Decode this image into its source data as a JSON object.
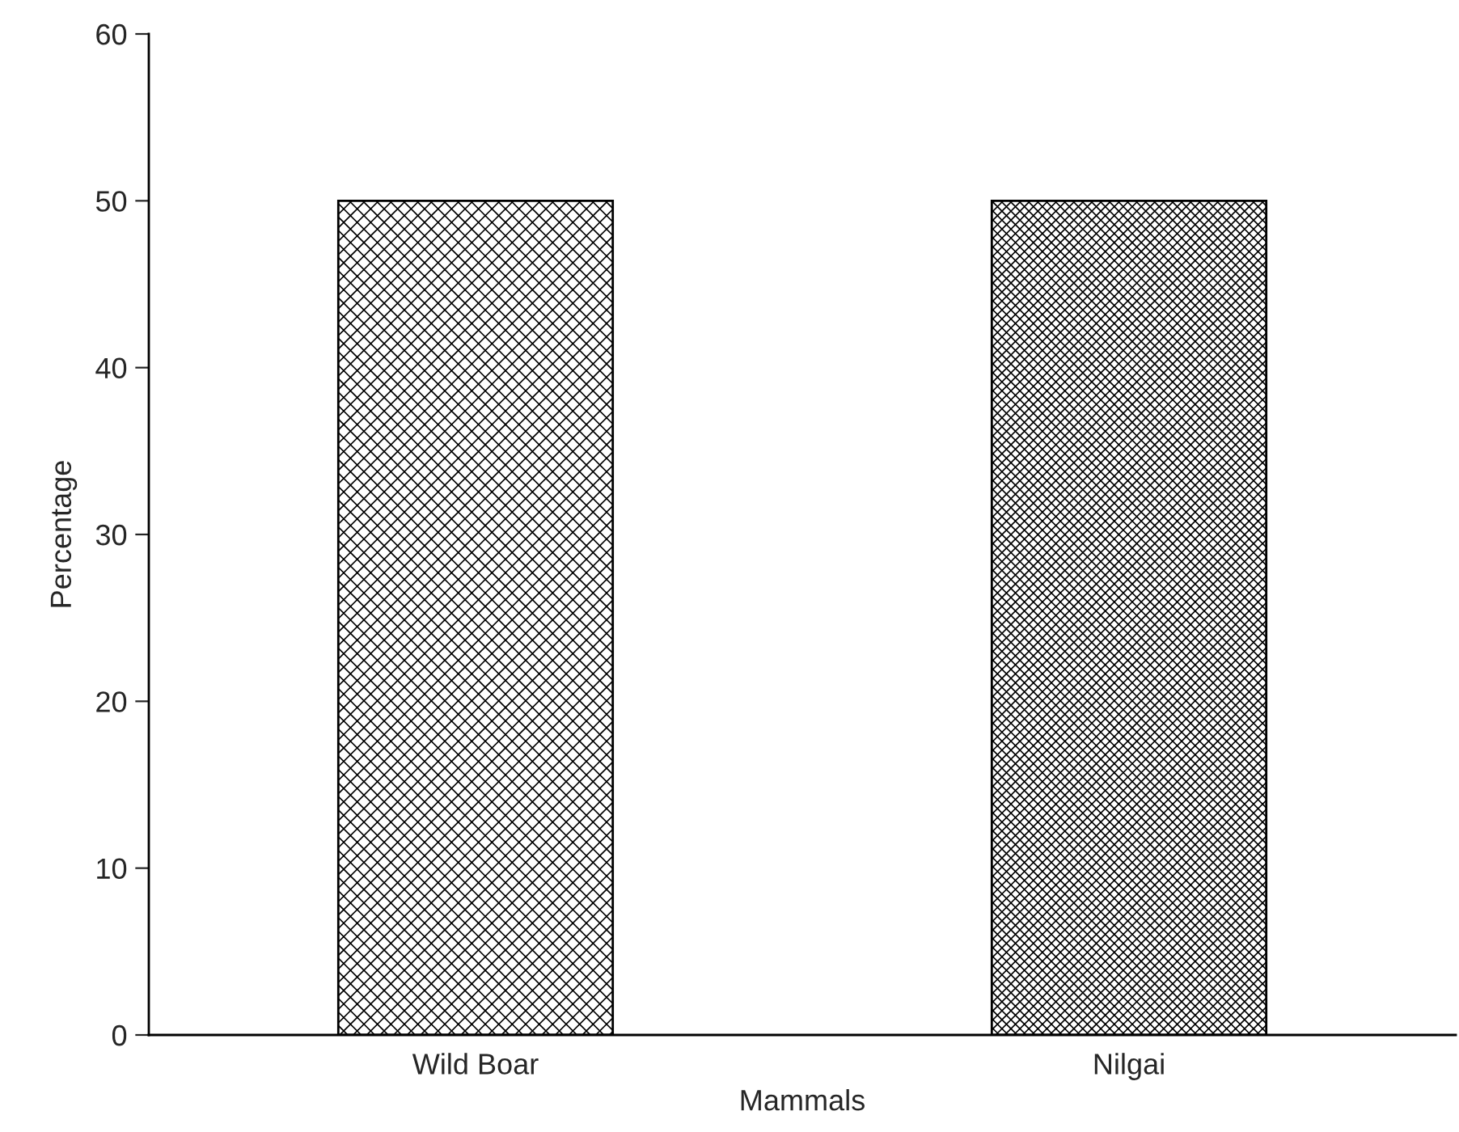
{
  "chart_data": {
    "type": "bar",
    "xlabel": "Mammals",
    "ylabel": "Percentage",
    "categories": [
      "Wild Boar",
      "Nilgai"
    ],
    "values": [
      50,
      50
    ],
    "ylim": [
      0,
      60
    ],
    "yticks": [
      0,
      10,
      20,
      30,
      40,
      50,
      60
    ],
    "grid": false,
    "legend": false
  }
}
